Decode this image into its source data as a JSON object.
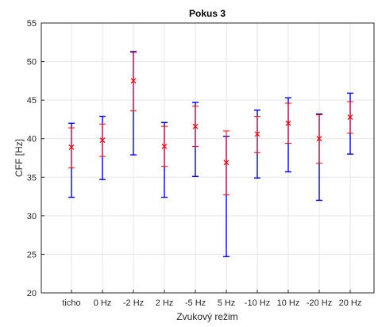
{
  "chart_data": {
    "type": "scatter",
    "title": "Pokus 3",
    "xlabel": "Zvukový režim",
    "ylabel": "CFF [Hz]",
    "ylim": [
      20,
      55
    ],
    "yticks": [
      "20",
      "25",
      "30",
      "35",
      "40",
      "45",
      "50",
      "55"
    ],
    "grid": true,
    "categories": [
      "ticho",
      "0 Hz",
      "-2 Hz",
      "2 Hz",
      "-5 Hz",
      "5 Hz",
      "-10 Hz",
      "10 Hz",
      "-20 Hz",
      "20 Hz"
    ],
    "series": [
      {
        "marker": "x",
        "color": "#ff0000",
        "values": [
          38.9,
          39.8,
          47.5,
          39.0,
          41.6,
          36.9,
          40.6,
          42.0,
          40.0,
          42.8
        ],
        "error_low": [
          36.2,
          37.7,
          43.6,
          36.4,
          39.0,
          32.7,
          38.2,
          39.4,
          36.8,
          40.7
        ],
        "error_high": [
          41.4,
          41.9,
          51.2,
          41.6,
          44.2,
          41.0,
          42.9,
          44.6,
          43.1,
          44.8
        ]
      },
      {
        "color": "#0000ff",
        "error_low": [
          32.4,
          34.7,
          37.9,
          32.4,
          35.1,
          24.7,
          34.9,
          35.7,
          32.0,
          38.0
        ],
        "error_high": [
          42.0,
          42.9,
          51.3,
          42.1,
          44.7,
          40.3,
          43.7,
          45.3,
          43.2,
          45.9
        ]
      }
    ]
  }
}
